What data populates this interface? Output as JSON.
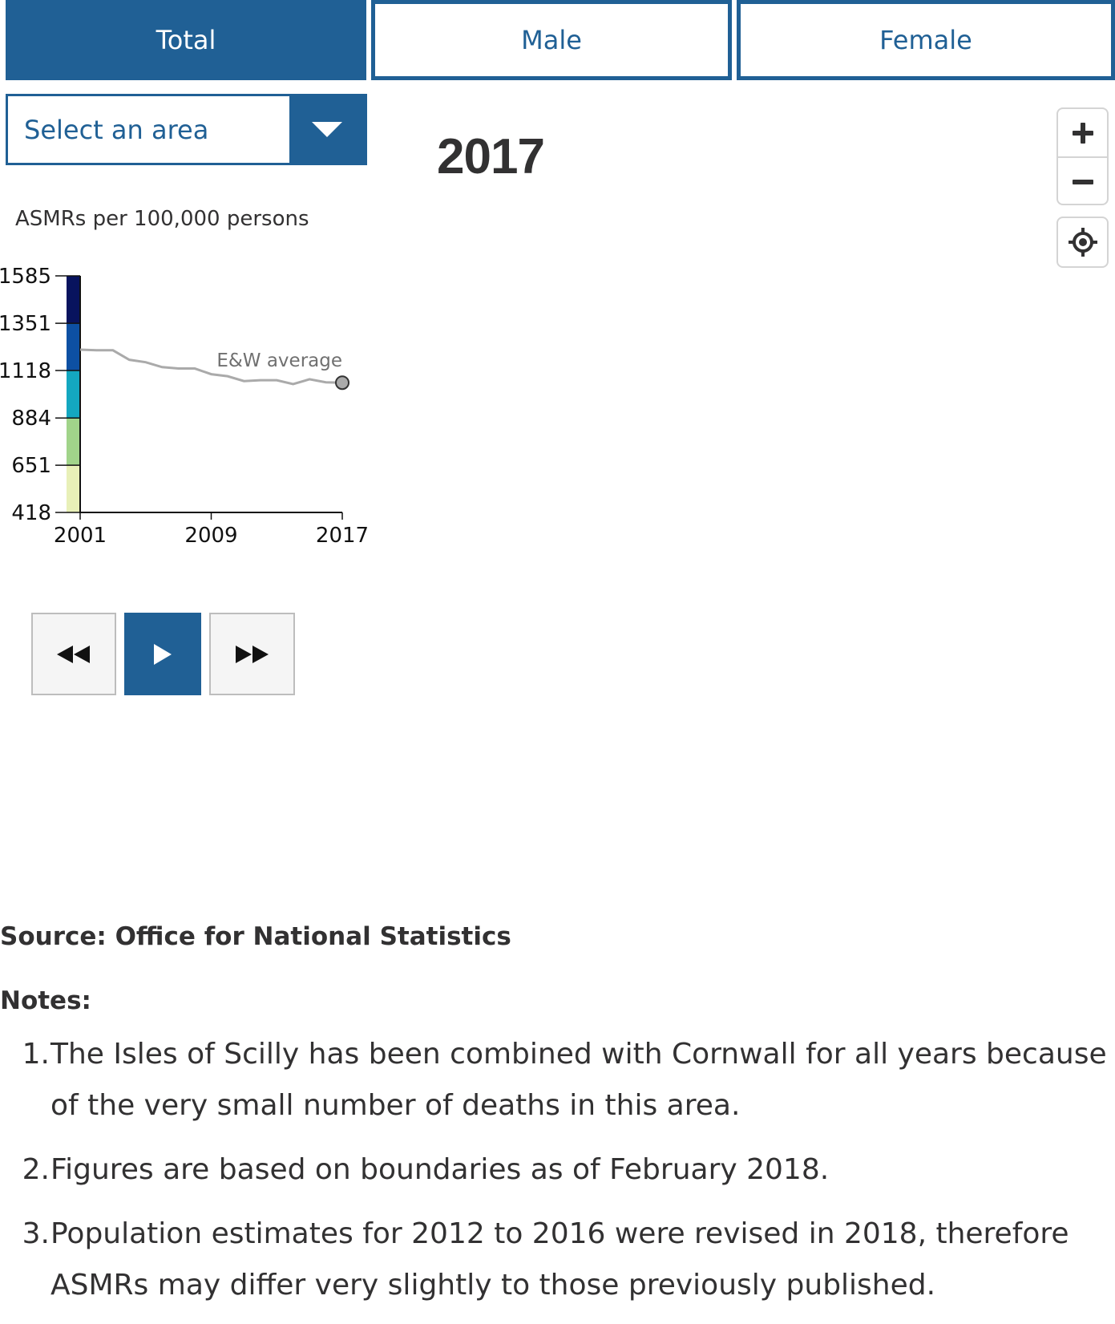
{
  "tabs": [
    {
      "label": "Total",
      "active": true
    },
    {
      "label": "Male",
      "active": false
    },
    {
      "label": "Female",
      "active": false
    }
  ],
  "area_select": {
    "placeholder": "Select an area"
  },
  "current_year": "2017",
  "map_controls": {
    "zoom_in": "+",
    "zoom_out": "−"
  },
  "legend": {
    "title": "ASMRs per 100,000 persons"
  },
  "chart_data": {
    "type": "line",
    "title": "",
    "xlabel": "",
    "ylabel": "ASMRs per 100,000 persons",
    "x_ticks": [
      "2001",
      "2009",
      "2017"
    ],
    "y_ticks": [
      "1585",
      "1351",
      "1118",
      "884",
      "651",
      "418"
    ],
    "ylim": [
      418,
      1585
    ],
    "xlim": [
      2001,
      2017
    ],
    "color_breaks": [
      {
        "from": 418,
        "to": 651,
        "color": "#e8f0b8"
      },
      {
        "from": 651,
        "to": 884,
        "color": "#a1d48a"
      },
      {
        "from": 884,
        "to": 1118,
        "color": "#14a7c0"
      },
      {
        "from": 1118,
        "to": 1351,
        "color": "#0d50a3"
      },
      {
        "from": 1351,
        "to": 1585,
        "color": "#08135e"
      }
    ],
    "series": [
      {
        "name": "E&W average",
        "color": "#aaaaaa",
        "x": [
          2001,
          2002,
          2003,
          2004,
          2005,
          2006,
          2007,
          2008,
          2009,
          2010,
          2011,
          2012,
          2013,
          2014,
          2015,
          2016,
          2017
        ],
        "values": [
          1221,
          1218,
          1218,
          1171,
          1159,
          1135,
          1128,
          1128,
          1100,
          1090,
          1066,
          1070,
          1070,
          1051,
          1075,
          1060,
          1058
        ]
      }
    ]
  },
  "playback": {
    "rewind_icon": "rewind-icon",
    "play_icon": "play-icon",
    "forward_icon": "fast-forward-icon"
  },
  "source": "Source: Office for National Statistics",
  "notes": {
    "title": "Notes:",
    "items": [
      {
        "num": "1.",
        "text": "The Isles of Scilly has been combined with Cornwall for all years because of the very small number of deaths in this area."
      },
      {
        "num": "2.",
        "text": "Figures are based on boundaries as of February 2018."
      },
      {
        "num": "3.",
        "text": "Population estimates for 2012 to 2016 were revised in 2018, therefore ASMRs may differ very slightly to those previously published."
      }
    ]
  },
  "colors": {
    "accent": "#206095",
    "text": "#323132",
    "average_line": "#aaaaaa"
  }
}
